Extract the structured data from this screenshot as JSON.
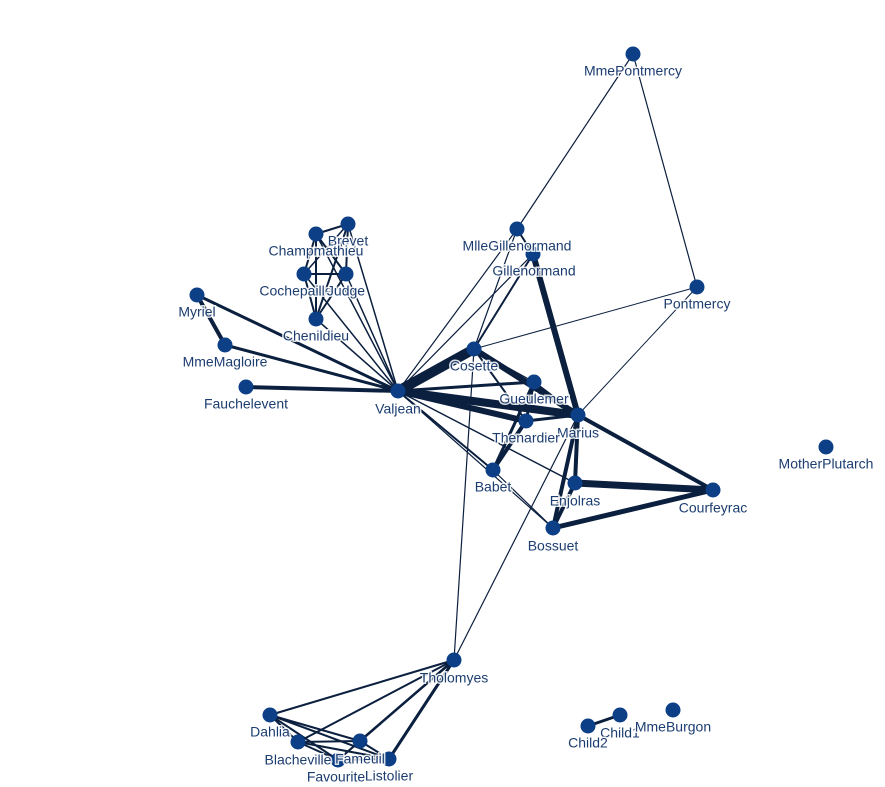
{
  "nodes": [
    {
      "label": "MmePontmercy"
    },
    {
      "label": "MlleGillenormand"
    },
    {
      "label": "Gillenormand"
    },
    {
      "label": "Pontmercy"
    },
    {
      "label": "Brevet"
    },
    {
      "label": "Champmathieu"
    },
    {
      "label": "Cochepaille"
    },
    {
      "label": "Judge"
    },
    {
      "label": "Chenildieu"
    },
    {
      "label": "Myriel"
    },
    {
      "label": "MmeMagloire"
    },
    {
      "label": "Fauchelevent"
    },
    {
      "label": "Valjean"
    },
    {
      "label": "Cosette"
    },
    {
      "label": "Gueulemer"
    },
    {
      "label": "Marius"
    },
    {
      "label": "Thenardier"
    },
    {
      "label": "Babet"
    },
    {
      "label": "Enjolras"
    },
    {
      "label": "Courfeyrac"
    },
    {
      "label": "Bossuet"
    },
    {
      "label": "MotherPlutarch"
    },
    {
      "label": "Tholomyes"
    },
    {
      "label": "Dahlia"
    },
    {
      "label": "Blacheville"
    },
    {
      "label": "Fameuil"
    },
    {
      "label": "Favourite"
    },
    {
      "label": "Listolier"
    },
    {
      "label": "Child1"
    },
    {
      "label": "Child2"
    },
    {
      "label": "MmeBurgon"
    }
  ]
}
